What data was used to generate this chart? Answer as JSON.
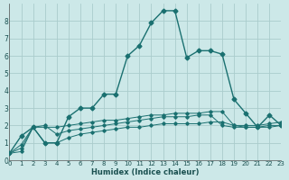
{
  "xlabel": "Humidex (Indice chaleur)",
  "background_color": "#cce8e8",
  "grid_color": "#aacccc",
  "line_color": "#1a7070",
  "x_ticks": [
    0,
    1,
    2,
    3,
    4,
    5,
    6,
    7,
    8,
    9,
    10,
    11,
    12,
    13,
    14,
    15,
    16,
    17,
    18,
    19,
    20,
    21,
    22,
    23
  ],
  "x_tick_labels": [
    "0",
    "1",
    "2",
    "3",
    "4",
    "5",
    "6",
    "7",
    "8",
    "9",
    "10",
    "11",
    "12",
    "13",
    "14",
    "15",
    "16",
    "17",
    "18",
    "19",
    "20",
    "21",
    "22",
    "23"
  ],
  "y_ticks": [
    0,
    1,
    2,
    3,
    4,
    5,
    6,
    7,
    8
  ],
  "xlim": [
    0,
    23
  ],
  "ylim": [
    0,
    9.0
  ],
  "series": [
    {
      "x": [
        0,
        1,
        2,
        3,
        4,
        5,
        6,
        7,
        8,
        9,
        10,
        11,
        12,
        13,
        14,
        15,
        16,
        17,
        18,
        19,
        20,
        21,
        22,
        23
      ],
      "y": [
        0.4,
        1.4,
        1.9,
        1.0,
        1.0,
        2.5,
        3.0,
        3.0,
        3.8,
        3.8,
        6.0,
        6.6,
        7.9,
        8.6,
        8.6,
        5.9,
        6.3,
        6.3,
        6.1,
        3.5,
        2.7,
        1.9,
        2.6,
        2.0
      ],
      "linewidth": 1.0,
      "markersize": 2.5
    },
    {
      "x": [
        0,
        1,
        2,
        3,
        4,
        5,
        6,
        7,
        8,
        9,
        10,
        11,
        12,
        13,
        14,
        15,
        16,
        17,
        18,
        19,
        20,
        21,
        22,
        23
      ],
      "y": [
        0.4,
        0.9,
        1.9,
        1.9,
        1.9,
        2.0,
        2.1,
        2.2,
        2.3,
        2.3,
        2.4,
        2.5,
        2.6,
        2.6,
        2.7,
        2.7,
        2.7,
        2.8,
        2.8,
        2.0,
        2.0,
        2.0,
        2.1,
        2.2
      ],
      "linewidth": 0.7,
      "markersize": 1.8
    },
    {
      "x": [
        0,
        1,
        2,
        3,
        4,
        5,
        6,
        7,
        8,
        9,
        10,
        11,
        12,
        13,
        14,
        15,
        16,
        17,
        18,
        19,
        20,
        21,
        22,
        23
      ],
      "y": [
        0.4,
        0.7,
        1.9,
        2.0,
        1.5,
        1.7,
        1.8,
        1.9,
        2.0,
        2.1,
        2.2,
        2.3,
        2.4,
        2.5,
        2.5,
        2.5,
        2.6,
        2.6,
        2.0,
        1.9,
        1.9,
        1.9,
        2.0,
        2.0
      ],
      "linewidth": 0.7,
      "markersize": 1.8
    },
    {
      "x": [
        0,
        1,
        2,
        3,
        4,
        5,
        6,
        7,
        8,
        9,
        10,
        11,
        12,
        13,
        14,
        15,
        16,
        17,
        18,
        19,
        20,
        21,
        22,
        23
      ],
      "y": [
        0.4,
        0.5,
        1.9,
        1.0,
        1.0,
        1.3,
        1.5,
        1.6,
        1.7,
        1.8,
        1.9,
        1.9,
        2.0,
        2.1,
        2.1,
        2.1,
        2.1,
        2.2,
        2.2,
        2.0,
        1.9,
        1.9,
        1.9,
        2.0
      ],
      "linewidth": 0.7,
      "markersize": 1.8
    }
  ]
}
